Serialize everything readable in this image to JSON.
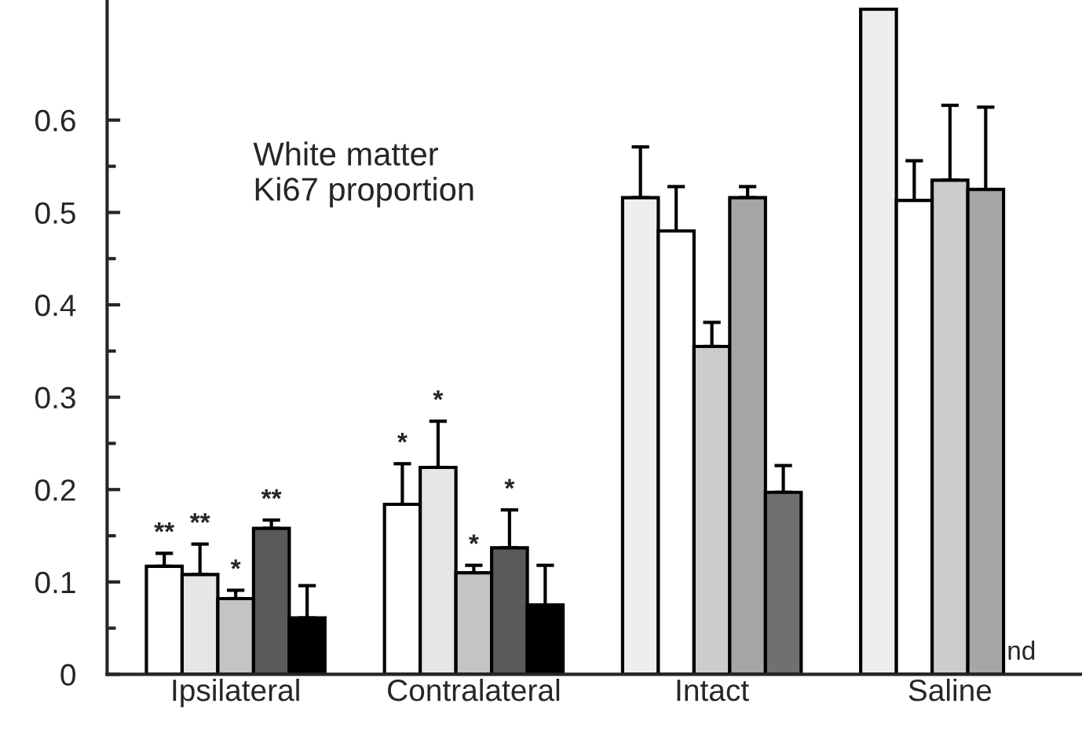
{
  "chart_data": {
    "type": "bar",
    "categories": [
      "Ipsilateral",
      "Contralateral",
      "Intact",
      "Saline"
    ],
    "series": [
      {
        "colors": [
          "#ffffff",
          "#ffffff",
          "#eeeeee",
          "#eeeeee"
        ],
        "values": [
          0.117,
          0.184,
          0.516,
          0.72
        ],
        "errors": [
          [
            0.117,
            0.131
          ],
          [
            0.184,
            0.228
          ],
          [
            0.516,
            0.571
          ],
          null
        ],
        "value_labels": [
          "**",
          "*",
          null,
          null
        ]
      },
      {
        "colors": [
          "#e6e6e6",
          "#e6e6e6",
          "#ffffff",
          "#ffffff"
        ],
        "values": [
          0.108,
          0.224,
          0.48,
          0.513
        ],
        "errors": [
          [
            0.108,
            0.141
          ],
          [
            0.224,
            0.274
          ],
          [
            0.48,
            0.528
          ],
          [
            0.513,
            0.556
          ]
        ],
        "value_labels": [
          "**",
          "*",
          null,
          null
        ]
      },
      {
        "colors": [
          "#c4c4c4",
          "#c4c4c4",
          "#cccccc",
          "#cccccc"
        ],
        "values": [
          0.082,
          0.11,
          0.355,
          0.535
        ],
        "errors": [
          [
            0.082,
            0.091
          ],
          [
            0.11,
            0.118
          ],
          [
            0.355,
            0.381
          ],
          [
            0.535,
            0.616
          ]
        ],
        "value_labels": [
          "*",
          "*",
          null,
          null
        ]
      },
      {
        "colors": [
          "#5a5a5a",
          "#5a5a5a",
          "#a6a6a6",
          "#a6a6a6"
        ],
        "values": [
          0.158,
          0.137,
          0.516,
          0.525
        ],
        "errors": [
          [
            0.158,
            0.167
          ],
          [
            0.137,
            0.178
          ],
          [
            0.516,
            0.528
          ],
          [
            0.525,
            0.614
          ]
        ],
        "value_labels": [
          "**",
          "*",
          null,
          null
        ]
      },
      {
        "colors": [
          "#000000",
          "#000000",
          "#707070",
          "#707070"
        ],
        "values": [
          0.061,
          0.075,
          0.197,
          null
        ],
        "errors": [
          [
            0.061,
            0.096
          ],
          [
            0.075,
            0.118
          ],
          [
            0.197,
            0.226
          ],
          null
        ],
        "value_labels": [
          null,
          null,
          null,
          "nd"
        ]
      }
    ],
    "ylim": [
      0,
      0.73
    ],
    "yticks": [
      0,
      0.1,
      0.2,
      0.3,
      0.4,
      0.5,
      0.6
    ],
    "annotations": [
      "White matter\nKi67 proportion"
    ],
    "grid": false,
    "legend": false
  }
}
